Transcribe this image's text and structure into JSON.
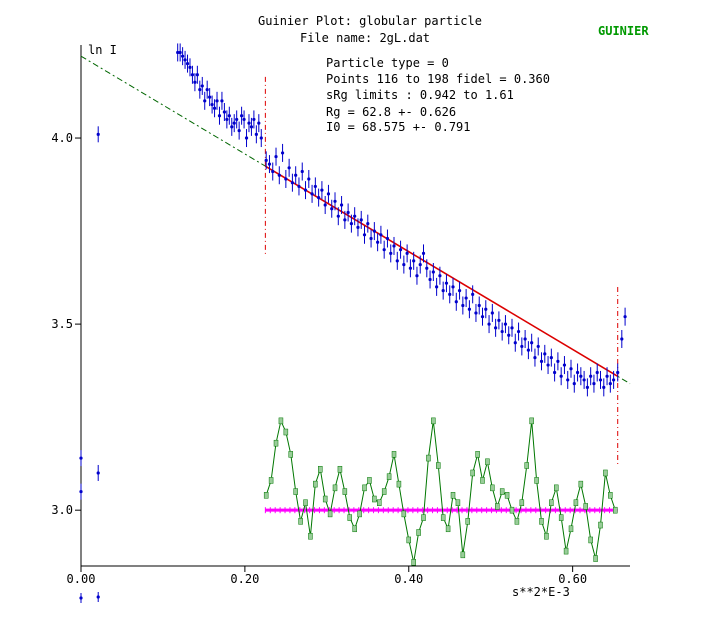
{
  "title": "Guinier Plot: globular particle",
  "file_line": "File name: 2gL.dat",
  "brand_label": "GUINIER",
  "colors": {
    "points": "#0000cc",
    "fit": "#dd0000",
    "extrapolation": "#006600",
    "residuals": "#007700",
    "residual_marker": "#99cc99",
    "zero_line": "#ff00ff",
    "brand": "#009900"
  },
  "info": {
    "particle_type": "Particle type = 0",
    "points": "Points 116 to 198 fidel = 0.360",
    "srg_limits": "sRg limits : 0.942 to 1.61",
    "rg": "Rg       = 62.8  +- 0.626",
    "i0": "I0       = 68.575  +- 0.791"
  },
  "chart_data": {
    "type": "scatter",
    "title": "Guinier Plot: globular particle",
    "xlabel": "s**2*E-3",
    "ylabel": "ln I",
    "xlim": [
      0,
      0.67
    ],
    "ylim": [
      2.85,
      4.25
    ],
    "x_ticks": [
      {
        "value": 0.0,
        "label": "0.00"
      },
      {
        "value": 0.2,
        "label": "0.20"
      },
      {
        "value": 0.4,
        "label": "0.40"
      },
      {
        "value": 0.6,
        "label": "0.60"
      }
    ],
    "y_ticks": [
      {
        "value": 3.0,
        "label": "3.0"
      },
      {
        "value": 3.5,
        "label": "3.5"
      },
      {
        "value": 4.0,
        "label": "4.0"
      }
    ],
    "fit_range": [
      0.225,
      0.655
    ],
    "fit_line": {
      "x": [
        0.0,
        0.67
      ],
      "y": [
        4.22,
        3.34
      ]
    },
    "isolated_points": [
      {
        "x": 0.0,
        "y": 3.14,
        "err": 0.03
      },
      {
        "x": 0.0,
        "y": 3.05,
        "err": 0.02
      },
      {
        "x": 0.021,
        "y": 4.01,
        "err": 0.015
      },
      {
        "x": 0.021,
        "y": 3.1,
        "err": 0.02
      }
    ],
    "points": [
      {
        "x": 0.118,
        "y": 4.23
      },
      {
        "x": 0.121,
        "y": 4.23
      },
      {
        "x": 0.124,
        "y": 4.22
      },
      {
        "x": 0.127,
        "y": 4.21
      },
      {
        "x": 0.13,
        "y": 4.2
      },
      {
        "x": 0.133,
        "y": 4.19
      },
      {
        "x": 0.136,
        "y": 4.17
      },
      {
        "x": 0.139,
        "y": 4.15
      },
      {
        "x": 0.142,
        "y": 4.17
      },
      {
        "x": 0.145,
        "y": 4.13
      },
      {
        "x": 0.148,
        "y": 4.14
      },
      {
        "x": 0.151,
        "y": 4.1
      },
      {
        "x": 0.154,
        "y": 4.13
      },
      {
        "x": 0.157,
        "y": 4.11
      },
      {
        "x": 0.16,
        "y": 4.09
      },
      {
        "x": 0.163,
        "y": 4.08
      },
      {
        "x": 0.166,
        "y": 4.1
      },
      {
        "x": 0.169,
        "y": 4.06
      },
      {
        "x": 0.172,
        "y": 4.1
      },
      {
        "x": 0.175,
        "y": 4.07
      },
      {
        "x": 0.178,
        "y": 4.05
      },
      {
        "x": 0.181,
        "y": 4.06
      },
      {
        "x": 0.184,
        "y": 4.03
      },
      {
        "x": 0.187,
        "y": 4.04
      },
      {
        "x": 0.19,
        "y": 4.05
      },
      {
        "x": 0.193,
        "y": 4.02
      },
      {
        "x": 0.196,
        "y": 4.06
      },
      {
        "x": 0.199,
        "y": 4.05
      },
      {
        "x": 0.202,
        "y": 4.0
      },
      {
        "x": 0.205,
        "y": 4.04
      },
      {
        "x": 0.208,
        "y": 4.03
      },
      {
        "x": 0.211,
        "y": 4.05
      },
      {
        "x": 0.214,
        "y": 4.01
      },
      {
        "x": 0.217,
        "y": 4.04
      },
      {
        "x": 0.22,
        "y": 4.0
      },
      {
        "x": 0.226,
        "y": 3.94
      },
      {
        "x": 0.23,
        "y": 3.93
      },
      {
        "x": 0.234,
        "y": 3.91
      },
      {
        "x": 0.238,
        "y": 3.95
      },
      {
        "x": 0.242,
        "y": 3.9
      },
      {
        "x": 0.246,
        "y": 3.96
      },
      {
        "x": 0.25,
        "y": 3.89
      },
      {
        "x": 0.254,
        "y": 3.92
      },
      {
        "x": 0.258,
        "y": 3.88
      },
      {
        "x": 0.262,
        "y": 3.9
      },
      {
        "x": 0.266,
        "y": 3.87
      },
      {
        "x": 0.27,
        "y": 3.91
      },
      {
        "x": 0.274,
        "y": 3.86
      },
      {
        "x": 0.278,
        "y": 3.89
      },
      {
        "x": 0.282,
        "y": 3.85
      },
      {
        "x": 0.286,
        "y": 3.87
      },
      {
        "x": 0.29,
        "y": 3.84
      },
      {
        "x": 0.294,
        "y": 3.86
      },
      {
        "x": 0.298,
        "y": 3.82
      },
      {
        "x": 0.302,
        "y": 3.85
      },
      {
        "x": 0.306,
        "y": 3.81
      },
      {
        "x": 0.31,
        "y": 3.83
      },
      {
        "x": 0.314,
        "y": 3.79
      },
      {
        "x": 0.318,
        "y": 3.82
      },
      {
        "x": 0.322,
        "y": 3.78
      },
      {
        "x": 0.326,
        "y": 3.8
      },
      {
        "x": 0.33,
        "y": 3.77
      },
      {
        "x": 0.334,
        "y": 3.79
      },
      {
        "x": 0.338,
        "y": 3.76
      },
      {
        "x": 0.342,
        "y": 3.78
      },
      {
        "x": 0.346,
        "y": 3.74
      },
      {
        "x": 0.35,
        "y": 3.77
      },
      {
        "x": 0.354,
        "y": 3.73
      },
      {
        "x": 0.358,
        "y": 3.75
      },
      {
        "x": 0.362,
        "y": 3.72
      },
      {
        "x": 0.366,
        "y": 3.74
      },
      {
        "x": 0.37,
        "y": 3.7
      },
      {
        "x": 0.374,
        "y": 3.73
      },
      {
        "x": 0.378,
        "y": 3.69
      },
      {
        "x": 0.382,
        "y": 3.71
      },
      {
        "x": 0.386,
        "y": 3.67
      },
      {
        "x": 0.39,
        "y": 3.7
      },
      {
        "x": 0.394,
        "y": 3.66
      },
      {
        "x": 0.398,
        "y": 3.69
      },
      {
        "x": 0.402,
        "y": 3.65
      },
      {
        "x": 0.406,
        "y": 3.67
      },
      {
        "x": 0.41,
        "y": 3.63
      },
      {
        "x": 0.414,
        "y": 3.66
      },
      {
        "x": 0.418,
        "y": 3.69
      },
      {
        "x": 0.422,
        "y": 3.65
      },
      {
        "x": 0.426,
        "y": 3.62
      },
      {
        "x": 0.43,
        "y": 3.64
      },
      {
        "x": 0.434,
        "y": 3.6
      },
      {
        "x": 0.438,
        "y": 3.63
      },
      {
        "x": 0.442,
        "y": 3.59
      },
      {
        "x": 0.446,
        "y": 3.61
      },
      {
        "x": 0.45,
        "y": 3.58
      },
      {
        "x": 0.454,
        "y": 3.6
      },
      {
        "x": 0.458,
        "y": 3.56
      },
      {
        "x": 0.462,
        "y": 3.59
      },
      {
        "x": 0.466,
        "y": 3.55
      },
      {
        "x": 0.47,
        "y": 3.57
      },
      {
        "x": 0.474,
        "y": 3.54
      },
      {
        "x": 0.478,
        "y": 3.58
      },
      {
        "x": 0.482,
        "y": 3.53
      },
      {
        "x": 0.486,
        "y": 3.55
      },
      {
        "x": 0.49,
        "y": 3.52
      },
      {
        "x": 0.494,
        "y": 3.54
      },
      {
        "x": 0.498,
        "y": 3.5
      },
      {
        "x": 0.502,
        "y": 3.53
      },
      {
        "x": 0.506,
        "y": 3.49
      },
      {
        "x": 0.51,
        "y": 3.51
      },
      {
        "x": 0.514,
        "y": 3.48
      },
      {
        "x": 0.518,
        "y": 3.5
      },
      {
        "x": 0.522,
        "y": 3.47
      },
      {
        "x": 0.526,
        "y": 3.49
      },
      {
        "x": 0.53,
        "y": 3.45
      },
      {
        "x": 0.534,
        "y": 3.48
      },
      {
        "x": 0.538,
        "y": 3.44
      },
      {
        "x": 0.542,
        "y": 3.46
      },
      {
        "x": 0.546,
        "y": 3.43
      },
      {
        "x": 0.55,
        "y": 3.45
      },
      {
        "x": 0.554,
        "y": 3.41
      },
      {
        "x": 0.558,
        "y": 3.44
      },
      {
        "x": 0.562,
        "y": 3.4
      },
      {
        "x": 0.566,
        "y": 3.42
      },
      {
        "x": 0.57,
        "y": 3.39
      },
      {
        "x": 0.574,
        "y": 3.41
      },
      {
        "x": 0.578,
        "y": 3.37
      },
      {
        "x": 0.582,
        "y": 3.4
      },
      {
        "x": 0.586,
        "y": 3.36
      },
      {
        "x": 0.59,
        "y": 3.39
      },
      {
        "x": 0.594,
        "y": 3.35
      },
      {
        "x": 0.598,
        "y": 3.38
      },
      {
        "x": 0.602,
        "y": 3.34
      },
      {
        "x": 0.606,
        "y": 3.37
      },
      {
        "x": 0.61,
        "y": 3.36
      },
      {
        "x": 0.614,
        "y": 3.35
      },
      {
        "x": 0.618,
        "y": 3.33
      },
      {
        "x": 0.622,
        "y": 3.36
      },
      {
        "x": 0.626,
        "y": 3.34
      },
      {
        "x": 0.63,
        "y": 3.37
      },
      {
        "x": 0.634,
        "y": 3.35
      },
      {
        "x": 0.638,
        "y": 3.33
      },
      {
        "x": 0.642,
        "y": 3.36
      },
      {
        "x": 0.646,
        "y": 3.34
      },
      {
        "x": 0.65,
        "y": 3.35
      },
      {
        "x": 0.655,
        "y": 3.37
      },
      {
        "x": 0.66,
        "y": 3.46
      },
      {
        "x": 0.664,
        "y": 3.52
      }
    ],
    "residuals": [
      {
        "x": 0.226,
        "y": 3.04
      },
      {
        "x": 0.232,
        "y": 3.08
      },
      {
        "x": 0.238,
        "y": 3.18
      },
      {
        "x": 0.244,
        "y": 3.24
      },
      {
        "x": 0.25,
        "y": 3.21
      },
      {
        "x": 0.256,
        "y": 3.15
      },
      {
        "x": 0.262,
        "y": 3.05
      },
      {
        "x": 0.268,
        "y": 2.97
      },
      {
        "x": 0.274,
        "y": 3.02
      },
      {
        "x": 0.28,
        "y": 2.93
      },
      {
        "x": 0.286,
        "y": 3.07
      },
      {
        "x": 0.292,
        "y": 3.11
      },
      {
        "x": 0.298,
        "y": 3.03
      },
      {
        "x": 0.304,
        "y": 2.99
      },
      {
        "x": 0.31,
        "y": 3.06
      },
      {
        "x": 0.316,
        "y": 3.11
      },
      {
        "x": 0.322,
        "y": 3.05
      },
      {
        "x": 0.328,
        "y": 2.98
      },
      {
        "x": 0.334,
        "y": 2.95
      },
      {
        "x": 0.34,
        "y": 2.99
      },
      {
        "x": 0.346,
        "y": 3.06
      },
      {
        "x": 0.352,
        "y": 3.08
      },
      {
        "x": 0.358,
        "y": 3.03
      },
      {
        "x": 0.364,
        "y": 3.02
      },
      {
        "x": 0.37,
        "y": 3.05
      },
      {
        "x": 0.376,
        "y": 3.09
      },
      {
        "x": 0.382,
        "y": 3.15
      },
      {
        "x": 0.388,
        "y": 3.07
      },
      {
        "x": 0.394,
        "y": 2.99
      },
      {
        "x": 0.4,
        "y": 2.92
      },
      {
        "x": 0.406,
        "y": 2.86
      },
      {
        "x": 0.412,
        "y": 2.94
      },
      {
        "x": 0.418,
        "y": 2.98
      },
      {
        "x": 0.424,
        "y": 3.14
      },
      {
        "x": 0.43,
        "y": 3.24
      },
      {
        "x": 0.436,
        "y": 3.12
      },
      {
        "x": 0.442,
        "y": 2.98
      },
      {
        "x": 0.448,
        "y": 2.95
      },
      {
        "x": 0.454,
        "y": 3.04
      },
      {
        "x": 0.46,
        "y": 3.02
      },
      {
        "x": 0.466,
        "y": 2.88
      },
      {
        "x": 0.472,
        "y": 2.97
      },
      {
        "x": 0.478,
        "y": 3.1
      },
      {
        "x": 0.484,
        "y": 3.15
      },
      {
        "x": 0.49,
        "y": 3.08
      },
      {
        "x": 0.496,
        "y": 3.13
      },
      {
        "x": 0.502,
        "y": 3.06
      },
      {
        "x": 0.508,
        "y": 3.01
      },
      {
        "x": 0.514,
        "y": 3.05
      },
      {
        "x": 0.52,
        "y": 3.04
      },
      {
        "x": 0.526,
        "y": 3.0
      },
      {
        "x": 0.532,
        "y": 2.97
      },
      {
        "x": 0.538,
        "y": 3.02
      },
      {
        "x": 0.544,
        "y": 3.12
      },
      {
        "x": 0.55,
        "y": 3.24
      },
      {
        "x": 0.556,
        "y": 3.08
      },
      {
        "x": 0.562,
        "y": 2.97
      },
      {
        "x": 0.568,
        "y": 2.93
      },
      {
        "x": 0.574,
        "y": 3.02
      },
      {
        "x": 0.58,
        "y": 3.06
      },
      {
        "x": 0.586,
        "y": 2.98
      },
      {
        "x": 0.592,
        "y": 2.89
      },
      {
        "x": 0.598,
        "y": 2.95
      },
      {
        "x": 0.604,
        "y": 3.02
      },
      {
        "x": 0.61,
        "y": 3.07
      },
      {
        "x": 0.616,
        "y": 3.01
      },
      {
        "x": 0.622,
        "y": 2.92
      },
      {
        "x": 0.628,
        "y": 2.87
      },
      {
        "x": 0.634,
        "y": 2.96
      },
      {
        "x": 0.64,
        "y": 3.1
      },
      {
        "x": 0.646,
        "y": 3.04
      },
      {
        "x": 0.652,
        "y": 3.0
      }
    ]
  }
}
